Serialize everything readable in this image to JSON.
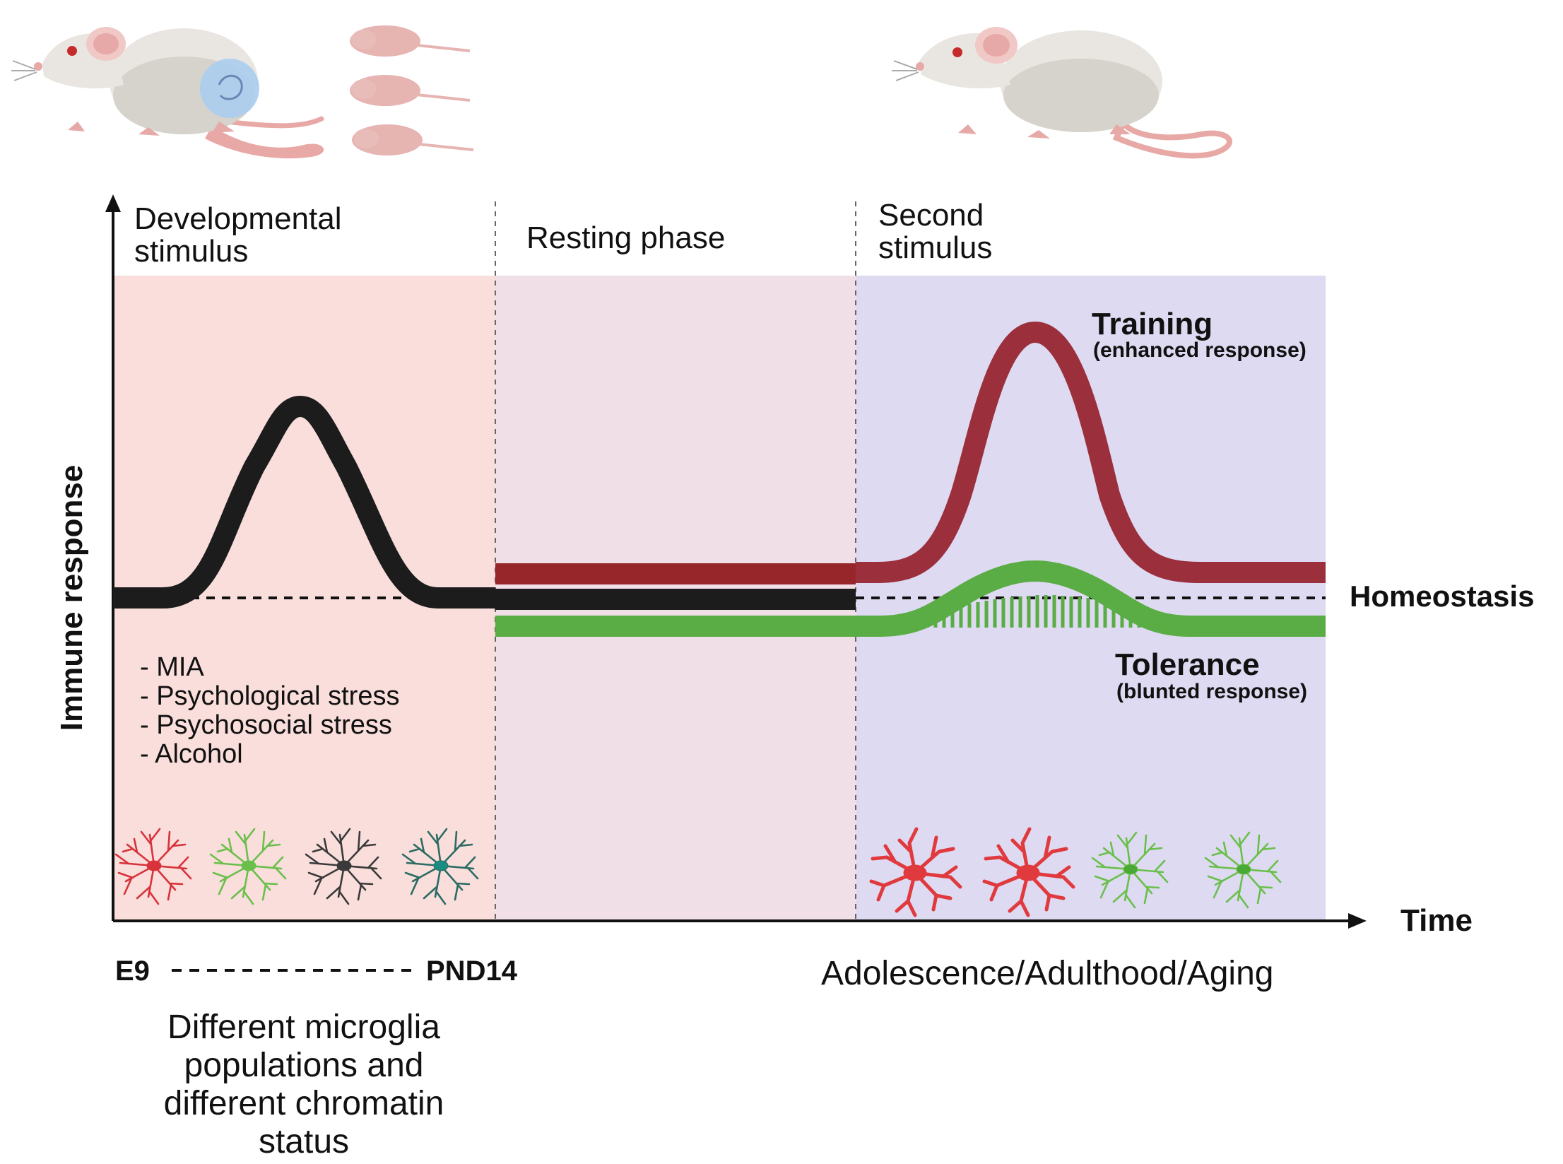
{
  "axes": {
    "y_label": "Immune response",
    "x_label": "Time"
  },
  "phases": {
    "developmental": [
      "Developmental",
      "stimulus"
    ],
    "resting": "Resting phase",
    "second": [
      "Second",
      "stimulus"
    ]
  },
  "curves": {
    "training": {
      "title": "Training",
      "subtitle": "(enhanced response)",
      "color": "#9b2f3c"
    },
    "tolerance": {
      "title": "Tolerance",
      "subtitle": "(blunted response)",
      "color": "#5aac44"
    },
    "developmental": {
      "color": "#1c1c1c"
    },
    "resting_training": {
      "color": "#97262a"
    }
  },
  "homeostasis_label": "Homeostasis",
  "stimuli_list": [
    "- MIA",
    "- Psychological stress",
    "- Psychosocial stress",
    "- Alcohol"
  ],
  "timeline": {
    "start": "E9",
    "end": "PND14",
    "later": "Adolescence/Adulthood/Aging"
  },
  "caption": [
    "Different microglia",
    "populations and",
    "different chromatin",
    "status"
  ],
  "colors": {
    "developmental_bg": "#f9dedb",
    "resting_bg": "#f1dfe8",
    "second_bg": "#dddaf1"
  },
  "icons": {
    "mice": [
      "pregnant-mouse-icon",
      "pup-icon",
      "adult-mouse-icon"
    ],
    "microglia": [
      "red-microglia-icon",
      "green-microglia-icon",
      "dark-microglia-icon",
      "teal-microglia-icon"
    ]
  }
}
